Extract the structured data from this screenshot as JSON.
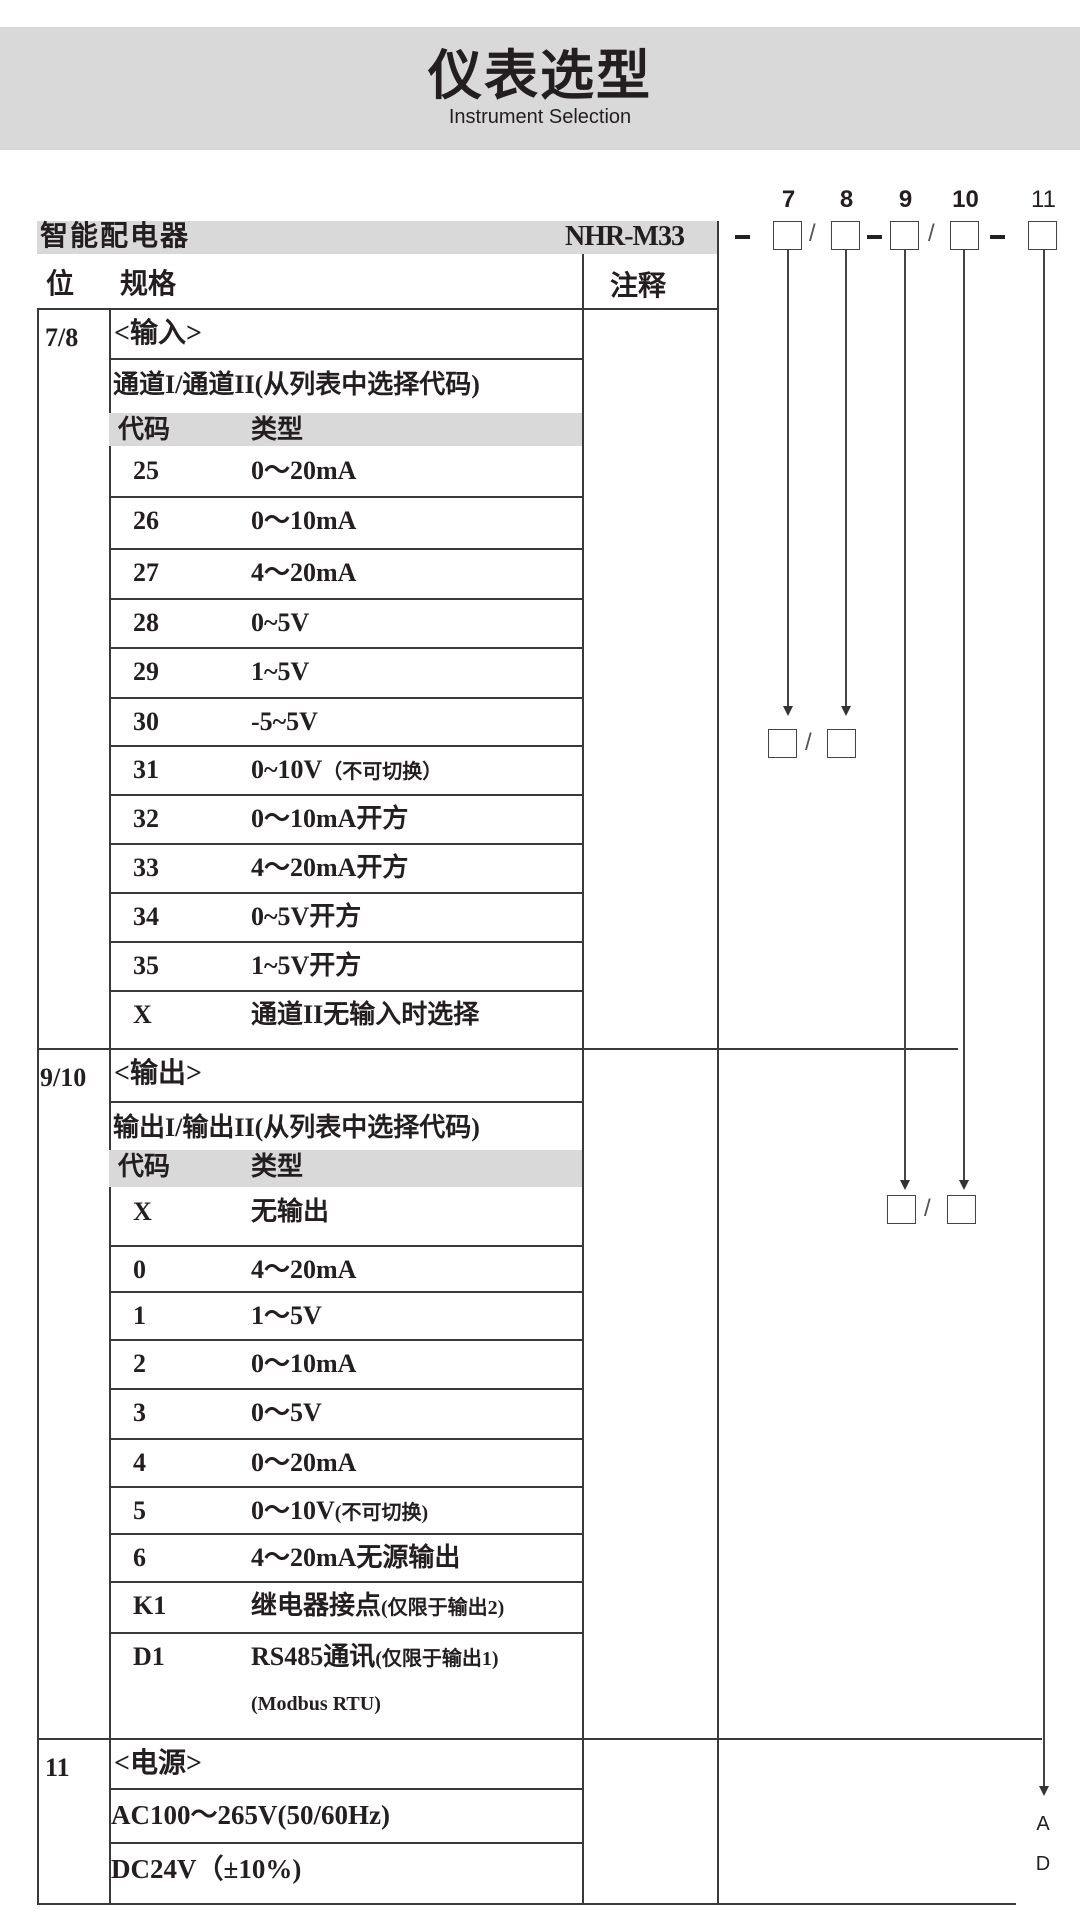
{
  "header": {
    "title": "仪表选型",
    "subtitle": "Instrument Selection"
  },
  "product": {
    "name": "智能配电器",
    "model": "NHR-M33"
  },
  "code_positions": [
    "7",
    "8",
    "9",
    "10",
    "11"
  ],
  "table_header": {
    "position": "位",
    "spec": "规格",
    "note": "注释"
  },
  "sections": [
    {
      "pos": "7/8",
      "title": "<输入>",
      "subtitle": "通道I/通道II(从列表中选择代码)",
      "col_code": "代码",
      "col_type": "类型",
      "rows": [
        {
          "code": "25",
          "type": "0～20mA"
        },
        {
          "code": "26",
          "type": "0～10mA"
        },
        {
          "code": "27",
          "type": "4～20mA"
        },
        {
          "code": "28",
          "type": "0~5V"
        },
        {
          "code": "29",
          "type": "1~5V"
        },
        {
          "code": "30",
          "type": "-5~5V"
        },
        {
          "code": "31",
          "type": "0~10V",
          "note": "（不可切换）"
        },
        {
          "code": "32",
          "type": "0～10mA开方"
        },
        {
          "code": "33",
          "type": "4～20mA开方"
        },
        {
          "code": "34",
          "type": "0~5V开方"
        },
        {
          "code": "35",
          "type": "1~5V开方"
        },
        {
          "code": "X",
          "type": "通道II无输入时选择"
        }
      ]
    },
    {
      "pos": "9/10",
      "title": "<输出>",
      "subtitle": "输出I/输出II(从列表中选择代码)",
      "col_code": "代码",
      "col_type": "类型",
      "rows": [
        {
          "code": "X",
          "type": "无输出"
        },
        {
          "code": "0",
          "type": "4～20mA"
        },
        {
          "code": "1",
          "type": "1～5V"
        },
        {
          "code": "2",
          "type": "0～10mA"
        },
        {
          "code": "3",
          "type": "0～5V"
        },
        {
          "code": "4",
          "type": "0～20mA"
        },
        {
          "code": "5",
          "type": "0～10V",
          "note": "(不可切换)"
        },
        {
          "code": "6",
          "type": "4～20mA无源输出"
        },
        {
          "code": "K1",
          "type": "继电器接点",
          "note": "(仅限于输出2)"
        },
        {
          "code": "D1",
          "type": "RS485通讯",
          "note": "(仅限于输出1)",
          "extra": "(Modbus RTU)"
        }
      ]
    },
    {
      "pos": "11",
      "title": "<电源>",
      "rows": [
        {
          "type": "AC100～265V(50/60Hz)"
        },
        {
          "type": "DC24V（±10%)"
        }
      ]
    }
  ],
  "power_codes": [
    "A",
    "D"
  ]
}
